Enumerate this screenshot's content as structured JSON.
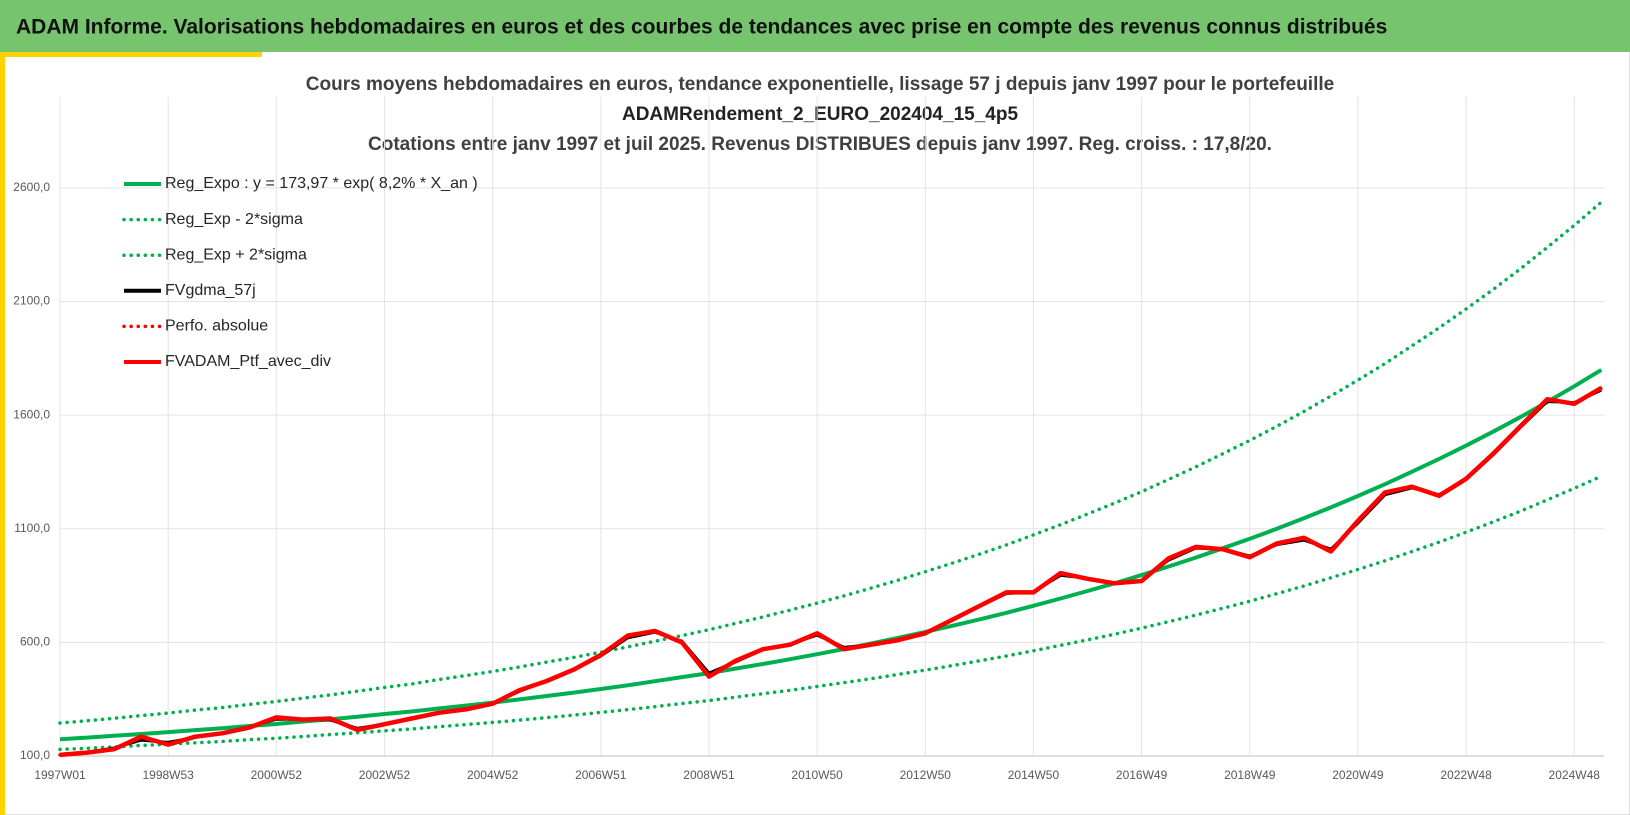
{
  "header": {
    "title": "ADAM Informe. Valorisations hebdomadaires en euros et des courbes de tendances avec prise en compte des revenus connus distribués"
  },
  "chart_data": {
    "type": "line",
    "title": [
      "Cours moyens hebdomadaires  en euros, tendance exponentielle, lissage 57 j depuis janv 1997 pour le portefeuille",
      "ADAMRendement_2_EURO_202404_15_4p5",
      "Cotations  entre janv 1997 et juil 2025. Revenus DISTRIBUES depuis janv 1997. Reg. croiss. : 17,8/20."
    ],
    "categories": [
      "1997W01",
      null,
      null,
      null,
      "1998W53",
      null,
      null,
      null,
      "2000W52",
      null,
      null,
      null,
      "2002W52",
      null,
      null,
      null,
      "2004W52",
      null,
      null,
      null,
      "2006W51",
      null,
      null,
      null,
      "2008W51",
      null,
      null,
      null,
      "2010W50",
      null,
      null,
      null,
      "2012W50",
      null,
      null,
      null,
      "2014W50",
      null,
      null,
      null,
      "2016W49",
      null,
      null,
      null,
      "2018W49",
      null,
      null,
      null,
      "2020W49",
      null,
      null,
      null,
      "2022W48",
      null,
      null,
      null,
      "2024W48",
      null
    ],
    "ylim": [
      100,
      3000
    ],
    "yticks": [
      {
        "value": 100,
        "label": "100,0"
      },
      {
        "value": 600,
        "label": "600,0"
      },
      {
        "value": 1100,
        "label": "1100,0"
      },
      {
        "value": 1600,
        "label": "1600,0"
      },
      {
        "value": 2100,
        "label": "2100,0"
      },
      {
        "value": 2600,
        "label": "2600,0"
      }
    ],
    "grid": true,
    "legend": "top-left",
    "series": [
      {
        "name": "Reg_Expo : y = 173,97 * exp( 8,2% *  X_an )",
        "color": "#00b050",
        "style": "solid",
        "values": [
          174,
          181,
          189,
          197,
          205,
          214,
          222,
          232,
          241,
          252,
          262,
          273,
          285,
          296,
          309,
          322,
          335,
          349,
          364,
          379,
          395,
          411,
          429,
          447,
          465,
          485,
          505,
          526,
          548,
          571,
          595,
          620,
          646,
          673,
          701,
          730,
          761,
          793,
          826,
          860,
          896,
          934,
          973,
          1014,
          1056,
          1100,
          1146,
          1194,
          1244,
          1296,
          1351,
          1407,
          1466,
          1527,
          1591,
          1658,
          1727,
          1799
        ]
      },
      {
        "name": "Reg_Exp - 2*sigma",
        "color": "#00b050",
        "style": "dotted",
        "values": [
          129,
          134,
          140,
          146,
          152,
          158,
          164,
          172,
          178,
          186,
          194,
          202,
          211,
          219,
          229,
          238,
          248,
          258,
          269,
          280,
          292,
          304,
          317,
          331,
          344,
          359,
          374,
          389,
          406,
          423,
          440,
          459,
          478,
          498,
          519,
          540,
          563,
          587,
          611,
          636,
          663,
          691,
          720,
          750,
          781,
          814,
          848,
          884,
          921,
          959,
          1000,
          1041,
          1085,
          1130,
          1177,
          1227,
          1278,
          1331
        ]
      },
      {
        "name": "Reg_Exp + 2*sigma",
        "color": "#00b050",
        "style": "dotted",
        "values": [
          245,
          255,
          266,
          278,
          289,
          302,
          313,
          327,
          340,
          355,
          369,
          385,
          402,
          417,
          436,
          454,
          472,
          492,
          513,
          534,
          557,
          580,
          605,
          630,
          656,
          684,
          712,
          742,
          773,
          805,
          839,
          874,
          911,
          949,
          988,
          1029,
          1073,
          1118,
          1165,
          1213,
          1263,
          1317,
          1372,
          1430,
          1489,
          1551,
          1616,
          1684,
          1754,
          1827,
          1905,
          1984,
          2067,
          2153,
          2243,
          2338,
          2435,
          2537
        ]
      },
      {
        "name": "FVgdma_57j",
        "color": "#000000",
        "style": "solid",
        "values": [
          108,
          116,
          135,
          170,
          160,
          182,
          202,
          228,
          262,
          262,
          258,
          222,
          240,
          265,
          290,
          305,
          332,
          385,
          430,
          478,
          540,
          620,
          645,
          605,
          465,
          515,
          568,
          592,
          632,
          578,
          590,
          612,
          642,
          698,
          758,
          815,
          822,
          895,
          882,
          862,
          872,
          962,
          1015,
          1010,
          980,
          1030,
          1050,
          1010,
          1125,
          1250,
          1280,
          1250,
          1318,
          1425,
          1545,
          1660,
          1655,
          1710
        ]
      },
      {
        "name": "Perfo. absolue",
        "color": "#ff0000",
        "style": "dotted",
        "values": [
          105,
          115,
          130,
          185,
          150,
          185,
          200,
          225,
          270,
          260,
          265,
          215,
          240,
          265,
          290,
          305,
          330,
          390,
          430,
          480,
          545,
          630,
          650,
          600,
          450,
          520,
          570,
          590,
          640,
          570,
          590,
          610,
          640,
          700,
          760,
          820,
          820,
          905,
          880,
          860,
          870,
          970,
          1020,
          1010,
          975,
          1035,
          1060,
          1000,
          1135,
          1260,
          1285,
          1245,
          1320,
          1430,
          1550,
          1670,
          1650,
          1720
        ]
      },
      {
        "name": "FVADAM_Ptf_avec_div",
        "color": "#ff0000",
        "style": "solid",
        "values": [
          105,
          115,
          130,
          185,
          150,
          185,
          200,
          225,
          270,
          260,
          265,
          215,
          240,
          265,
          290,
          305,
          330,
          390,
          430,
          480,
          545,
          630,
          650,
          600,
          450,
          520,
          570,
          590,
          640,
          570,
          590,
          610,
          640,
          700,
          760,
          820,
          820,
          905,
          880,
          860,
          870,
          970,
          1020,
          1010,
          975,
          1035,
          1060,
          1000,
          1135,
          1260,
          1285,
          1245,
          1320,
          1430,
          1550,
          1670,
          1650,
          1720
        ]
      }
    ]
  }
}
